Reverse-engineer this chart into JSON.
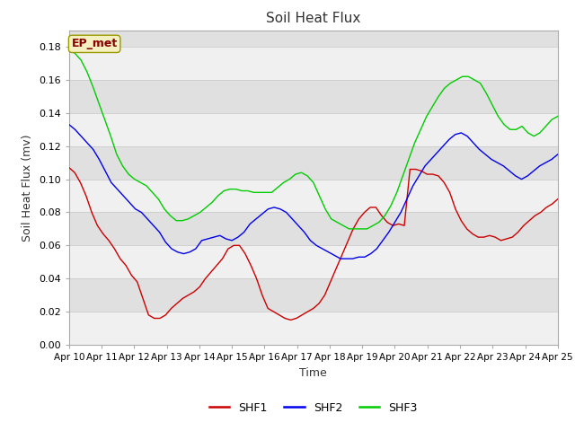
{
  "title": "Soil Heat Flux",
  "xlabel": "Time",
  "ylabel": "Soil Heat Flux (mv)",
  "ylim": [
    0.0,
    0.19
  ],
  "yticks": [
    0.0,
    0.02,
    0.04,
    0.06,
    0.08,
    0.1,
    0.12,
    0.14,
    0.16,
    0.18
  ],
  "xtick_labels": [
    "Apr 10",
    "Apr 11",
    "Apr 12",
    "Apr 13",
    "Apr 14",
    "Apr 15",
    "Apr 16",
    "Apr 17",
    "Apr 18",
    "Apr 19",
    "Apr 20",
    "Apr 21",
    "Apr 22",
    "Apr 23",
    "Apr 24",
    "Apr 25"
  ],
  "annotation_text": "EP_met",
  "shf1_color": "#cc0000",
  "shf2_color": "#0000ee",
  "shf3_color": "#00cc00",
  "band_color_light": "#f0f0f0",
  "band_color_dark": "#e0e0e0",
  "fig_bg": "#ffffff",
  "shf1": [
    0.107,
    0.104,
    0.098,
    0.09,
    0.08,
    0.072,
    0.067,
    0.063,
    0.058,
    0.052,
    0.048,
    0.042,
    0.038,
    0.028,
    0.018,
    0.016,
    0.016,
    0.018,
    0.022,
    0.025,
    0.028,
    0.03,
    0.032,
    0.035,
    0.04,
    0.044,
    0.048,
    0.052,
    0.058,
    0.06,
    0.06,
    0.055,
    0.048,
    0.04,
    0.03,
    0.022,
    0.02,
    0.018,
    0.016,
    0.015,
    0.016,
    0.018,
    0.02,
    0.022,
    0.025,
    0.03,
    0.038,
    0.046,
    0.054,
    0.062,
    0.07,
    0.076,
    0.08,
    0.083,
    0.083,
    0.078,
    0.074,
    0.072,
    0.073,
    0.072,
    0.106,
    0.106,
    0.105,
    0.103,
    0.103,
    0.102,
    0.098,
    0.092,
    0.082,
    0.075,
    0.07,
    0.067,
    0.065,
    0.065,
    0.066,
    0.065,
    0.063,
    0.064,
    0.065,
    0.068,
    0.072,
    0.075,
    0.078,
    0.08,
    0.083,
    0.085,
    0.088
  ],
  "shf2": [
    0.133,
    0.13,
    0.126,
    0.122,
    0.118,
    0.112,
    0.105,
    0.098,
    0.094,
    0.09,
    0.086,
    0.082,
    0.08,
    0.076,
    0.072,
    0.068,
    0.062,
    0.058,
    0.056,
    0.055,
    0.056,
    0.058,
    0.063,
    0.064,
    0.065,
    0.066,
    0.064,
    0.063,
    0.065,
    0.068,
    0.073,
    0.076,
    0.079,
    0.082,
    0.083,
    0.082,
    0.08,
    0.076,
    0.072,
    0.068,
    0.063,
    0.06,
    0.058,
    0.056,
    0.054,
    0.052,
    0.052,
    0.052,
    0.053,
    0.053,
    0.055,
    0.058,
    0.063,
    0.068,
    0.074,
    0.08,
    0.088,
    0.096,
    0.102,
    0.108,
    0.112,
    0.116,
    0.12,
    0.124,
    0.127,
    0.128,
    0.126,
    0.122,
    0.118,
    0.115,
    0.112,
    0.11,
    0.108,
    0.105,
    0.102,
    0.1,
    0.102,
    0.105,
    0.108,
    0.11,
    0.112,
    0.115
  ],
  "shf3": [
    0.178,
    0.176,
    0.172,
    0.165,
    0.156,
    0.146,
    0.136,
    0.126,
    0.115,
    0.108,
    0.103,
    0.1,
    0.098,
    0.096,
    0.092,
    0.088,
    0.082,
    0.078,
    0.075,
    0.075,
    0.076,
    0.078,
    0.08,
    0.083,
    0.086,
    0.09,
    0.093,
    0.094,
    0.094,
    0.093,
    0.093,
    0.092,
    0.092,
    0.092,
    0.092,
    0.095,
    0.098,
    0.1,
    0.103,
    0.104,
    0.102,
    0.098,
    0.09,
    0.082,
    0.076,
    0.074,
    0.072,
    0.07,
    0.07,
    0.07,
    0.07,
    0.072,
    0.074,
    0.078,
    0.084,
    0.092,
    0.102,
    0.112,
    0.122,
    0.13,
    0.138,
    0.144,
    0.15,
    0.155,
    0.158,
    0.16,
    0.162,
    0.162,
    0.16,
    0.158,
    0.152,
    0.145,
    0.138,
    0.133,
    0.13,
    0.13,
    0.132,
    0.128,
    0.126,
    0.128,
    0.132,
    0.136,
    0.138
  ]
}
